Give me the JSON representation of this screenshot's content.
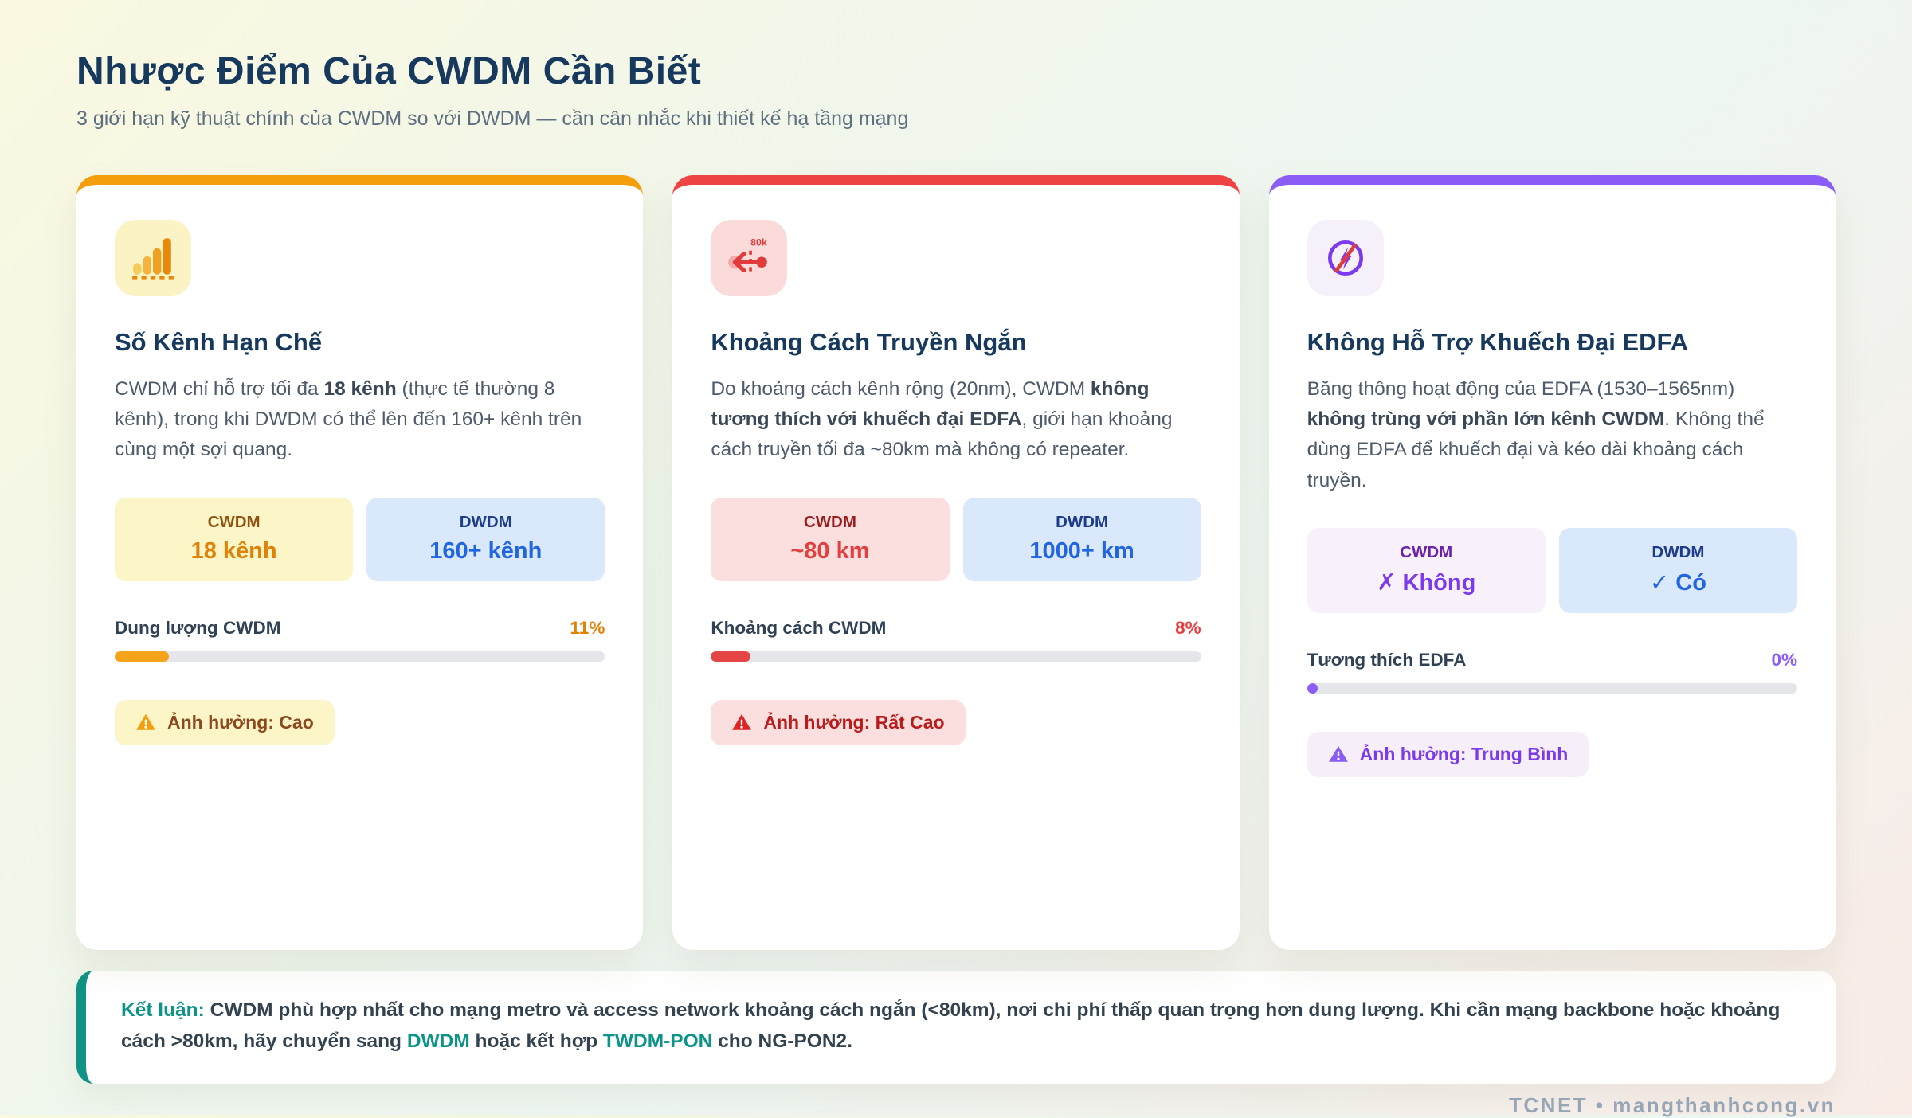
{
  "header": {
    "title": "Nhược Điểm Của CWDM Cần Biết",
    "subtitle": "3 giới hạn kỹ thuật chính của CWDM so với DWDM — cần cân nhắc khi thiết kế hạ tầng mạng"
  },
  "palette": {
    "card_accents": [
      "#F59E0B",
      "#EF4444",
      "#8B5CF6"
    ],
    "dwdm_blue": "#2166E0",
    "navy": "#17395E",
    "teal": "#0D9488"
  },
  "cards": [
    {
      "icon": "bar-chart-icon",
      "title": "Số Kênh Hạn Chế",
      "description_segments": [
        {
          "text": "CWDM chỉ hỗ trợ tối đa ",
          "bold": false
        },
        {
          "text": "18 kênh",
          "bold": true
        },
        {
          "text": " (thực tế thường 8 kênh), trong khi DWDM có thể lên đến 160+ kênh trên cùng một sợi quang.",
          "bold": false
        }
      ],
      "cwdm": {
        "label": "CWDM",
        "value": "18 kênh"
      },
      "dwdm": {
        "label": "DWDM",
        "value": "160+ kênh"
      },
      "metric": {
        "label": "Dung lượng CWDM",
        "percent_label": "11%",
        "percent": 11
      },
      "impact": {
        "label": "Ảnh hưởng: Cao"
      }
    },
    {
      "icon": "short-distance-arrow-icon",
      "icon_text": "80k",
      "title": "Khoảng Cách Truyền Ngắn",
      "description_segments": [
        {
          "text": "Do khoảng cách kênh rộng (20nm), CWDM ",
          "bold": false
        },
        {
          "text": "không tương thích với khuếch đại EDFA",
          "bold": true
        },
        {
          "text": ", giới hạn khoảng cách truyền tối đa ~80km mà không có repeater.",
          "bold": false
        }
      ],
      "cwdm": {
        "label": "CWDM",
        "value": "~80 km"
      },
      "dwdm": {
        "label": "DWDM",
        "value": "1000+ km"
      },
      "metric": {
        "label": "Khoảng cách CWDM",
        "percent_label": "8%",
        "percent": 8
      },
      "impact": {
        "label": "Ảnh hưởng: Rất Cao"
      }
    },
    {
      "icon": "no-amplifier-icon",
      "title": "Không Hỗ Trợ Khuếch Đại EDFA",
      "description_segments": [
        {
          "text": "Băng thông hoạt động của EDFA (1530–1565nm) ",
          "bold": false
        },
        {
          "text": "không trùng với phần lớn kênh CWDM",
          "bold": true
        },
        {
          "text": ". Không thể dùng EDFA để khuếch đại và kéo dài khoảng cách truyền.",
          "bold": false
        }
      ],
      "cwdm": {
        "label": "CWDM",
        "value": "✗ Không"
      },
      "dwdm": {
        "label": "DWDM",
        "value": "✓ Có"
      },
      "metric": {
        "label": "Tương thích EDFA",
        "percent_label": "0%",
        "percent": 0
      },
      "impact": {
        "label": "Ảnh hưởng: Trung Bình"
      }
    }
  ],
  "conclusion": {
    "segments": [
      {
        "text": "Kết luận: ",
        "accent": true
      },
      {
        "text": "CWDM phù hợp nhất cho mạng metro và access network khoảng cách ngắn (<80km), nơi chi phí thấp quan trọng hơn dung lượng. Khi cần mạng backbone hoặc khoảng cách >80km, hãy chuyển sang ",
        "accent": false
      },
      {
        "text": "DWDM",
        "accent": true
      },
      {
        "text": " hoặc kết hợp ",
        "accent": false
      },
      {
        "text": "TWDM-PON",
        "accent": true
      },
      {
        "text": " cho NG-PON2.",
        "accent": false
      }
    ]
  },
  "footer": {
    "credit": "TCNET • mangthanhcong.vn"
  }
}
